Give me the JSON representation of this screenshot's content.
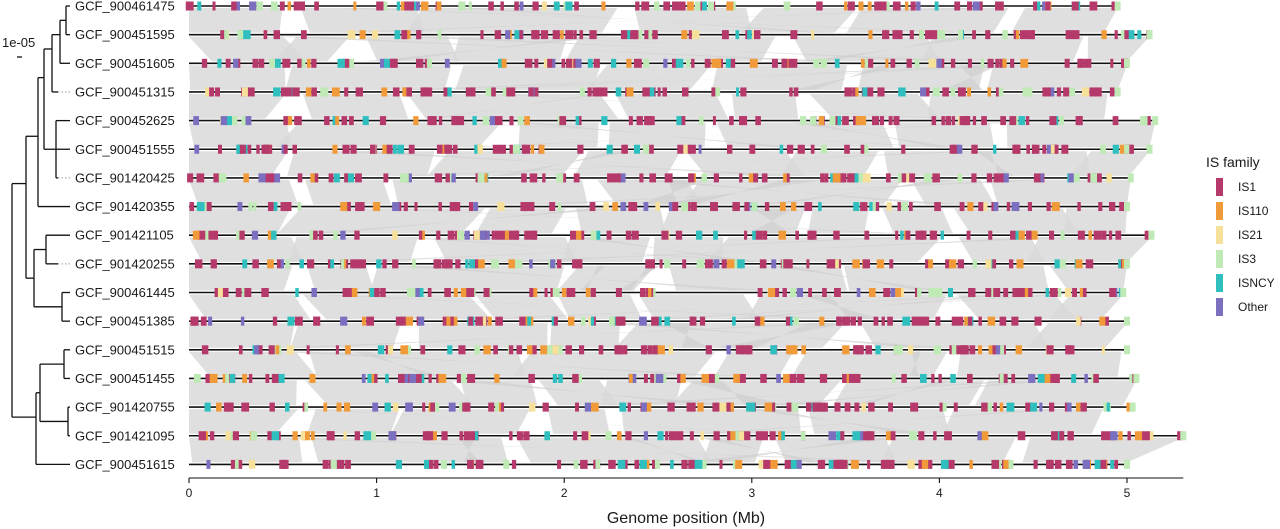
{
  "chart_data": {
    "type": "genome-map",
    "xlabel": "Genome position (Mb)",
    "xlim": [
      0,
      5.3
    ],
    "x_ticks": [
      0,
      1,
      2,
      3,
      4,
      5
    ],
    "tree_scale_label": "1e-05",
    "legend": {
      "title": "IS family",
      "items": [
        {
          "name": "IS1",
          "color": "#B5396A"
        },
        {
          "name": "IS110",
          "color": "#F09A3A"
        },
        {
          "name": "IS21",
          "color": "#F7E19A"
        },
        {
          "name": "IS3",
          "color": "#BFEAB5"
        },
        {
          "name": "ISNCY",
          "color": "#2FBFBF"
        },
        {
          "name": "Other",
          "color": "#7B6FC0"
        }
      ]
    },
    "synteny_color": "#d9d9d9",
    "genomes": [
      {
        "name": "GCF_900461475",
        "length_mb": 4.95
      },
      {
        "name": "GCF_900451595",
        "length_mb": 5.12
      },
      {
        "name": "GCF_900451605",
        "length_mb": 5.0
      },
      {
        "name": "GCF_900451315",
        "length_mb": 4.95
      },
      {
        "name": "GCF_900452625",
        "length_mb": 5.15
      },
      {
        "name": "GCF_900451555",
        "length_mb": 5.12
      },
      {
        "name": "GCF_901420425",
        "length_mb": 5.02
      },
      {
        "name": "GCF_901420355",
        "length_mb": 5.0
      },
      {
        "name": "GCF_901421105",
        "length_mb": 5.13
      },
      {
        "name": "GCF_901420255",
        "length_mb": 5.0
      },
      {
        "name": "GCF_900461445",
        "length_mb": 4.98
      },
      {
        "name": "GCF_900451385",
        "length_mb": 5.0
      },
      {
        "name": "GCF_900451515",
        "length_mb": 5.0
      },
      {
        "name": "GCF_900451455",
        "length_mb": 5.05
      },
      {
        "name": "GCF_901420755",
        "length_mb": 5.03
      },
      {
        "name": "GCF_901421095",
        "length_mb": 5.3
      },
      {
        "name": "GCF_900451615",
        "length_mb": 5.0
      }
    ]
  }
}
